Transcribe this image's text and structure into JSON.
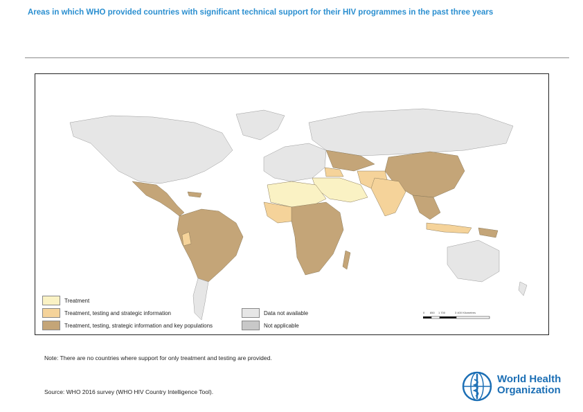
{
  "title": "Areas in which WHO provided countries with significant technical support for their HIV programmes in the past three years",
  "colors": {
    "treatment": "#faf2c4",
    "treatment_testing_strategic": "#f5d39a",
    "full": "#c4a578",
    "not_available": "#e6e6e6",
    "not_applicable": "#c8c8c8",
    "title_blue": "#2b8fd0",
    "who_blue": "#1c6fb5"
  },
  "legend": {
    "treatment": "Treatment",
    "treatment_testing_strategic": "Treatment, testing and strategic information",
    "full": "Treatment, testing, strategic information and key populations",
    "not_available": "Data not available",
    "not_applicable": "Not applicable"
  },
  "scale": {
    "zero": "0",
    "mid1": "850",
    "mid2": "1 700",
    "end": "3 400 Kilometres"
  },
  "note": "Note: There are no countries where support for only  treatment and testing are provided.",
  "source": "Source: WHO 2016 survey (WHO HIV Country Intelligence Tool).",
  "logo": {
    "line1": "World Health",
    "line2": "Organization"
  }
}
